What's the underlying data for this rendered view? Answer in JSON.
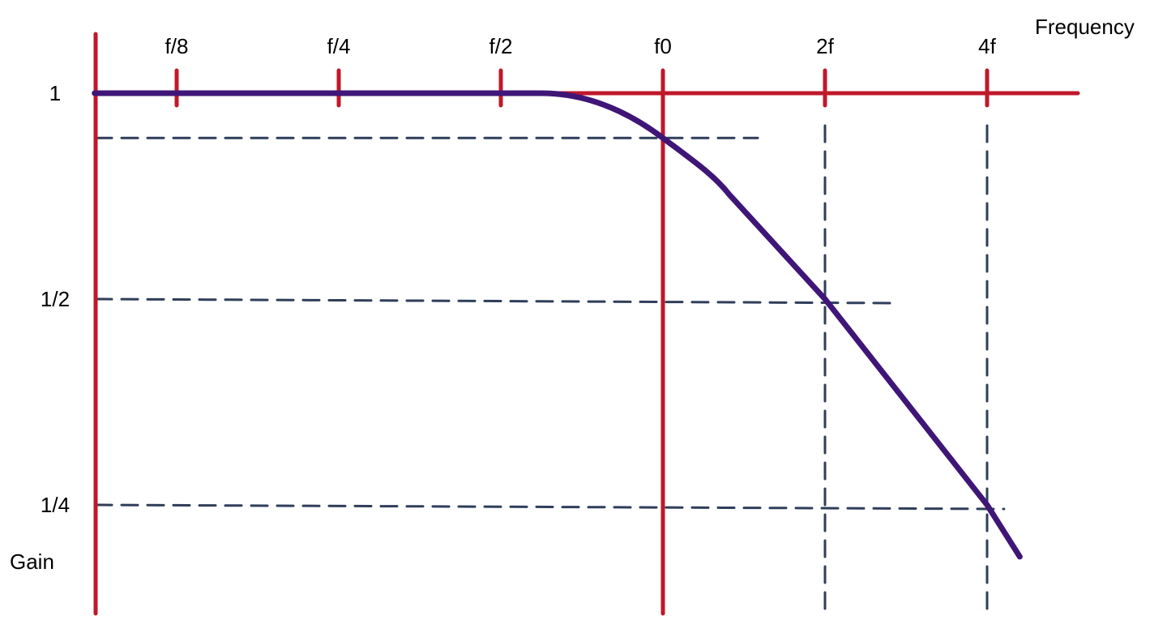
{
  "chart_data": {
    "type": "line",
    "xlabel": "Frequency",
    "ylabel": "Gain",
    "x_scale": "log2",
    "y_scale": "log2",
    "x_ticks": [
      {
        "label": "f/8",
        "value": 0.125
      },
      {
        "label": "f/4",
        "value": 0.25
      },
      {
        "label": "f/2",
        "value": 0.5
      },
      {
        "label": "f0",
        "value": 1
      },
      {
        "label": "2f",
        "value": 2
      },
      {
        "label": "4f",
        "value": 4
      }
    ],
    "y_ticks": [
      {
        "label": "1",
        "value": 1
      },
      {
        "label": "1/2",
        "value": 0.5
      },
      {
        "label": "1/4",
        "value": 0.25
      }
    ],
    "series": [
      {
        "points": [
          [
            0.088,
            1
          ],
          [
            0.595,
            1
          ],
          [
            0.8,
            0.97
          ],
          [
            1,
            0.86
          ],
          [
            1.33,
            0.71
          ],
          [
            2,
            0.5
          ],
          [
            4,
            0.25
          ],
          [
            4.6,
            0.21
          ]
        ]
      }
    ],
    "reference_lines": {
      "horizontal": [
        {
          "gain": 0.86,
          "x_end": 1.5
        },
        {
          "gain": 0.5,
          "x_end": 2.7
        },
        {
          "gain": 0.25,
          "x_end": 4.3
        }
      ],
      "vertical": [
        {
          "x": 2
        },
        {
          "x": 4
        }
      ]
    },
    "colors": {
      "axes": "#c0182a",
      "curve": "#3f1677",
      "reference": "#2f3e5a"
    },
    "grid": false
  }
}
